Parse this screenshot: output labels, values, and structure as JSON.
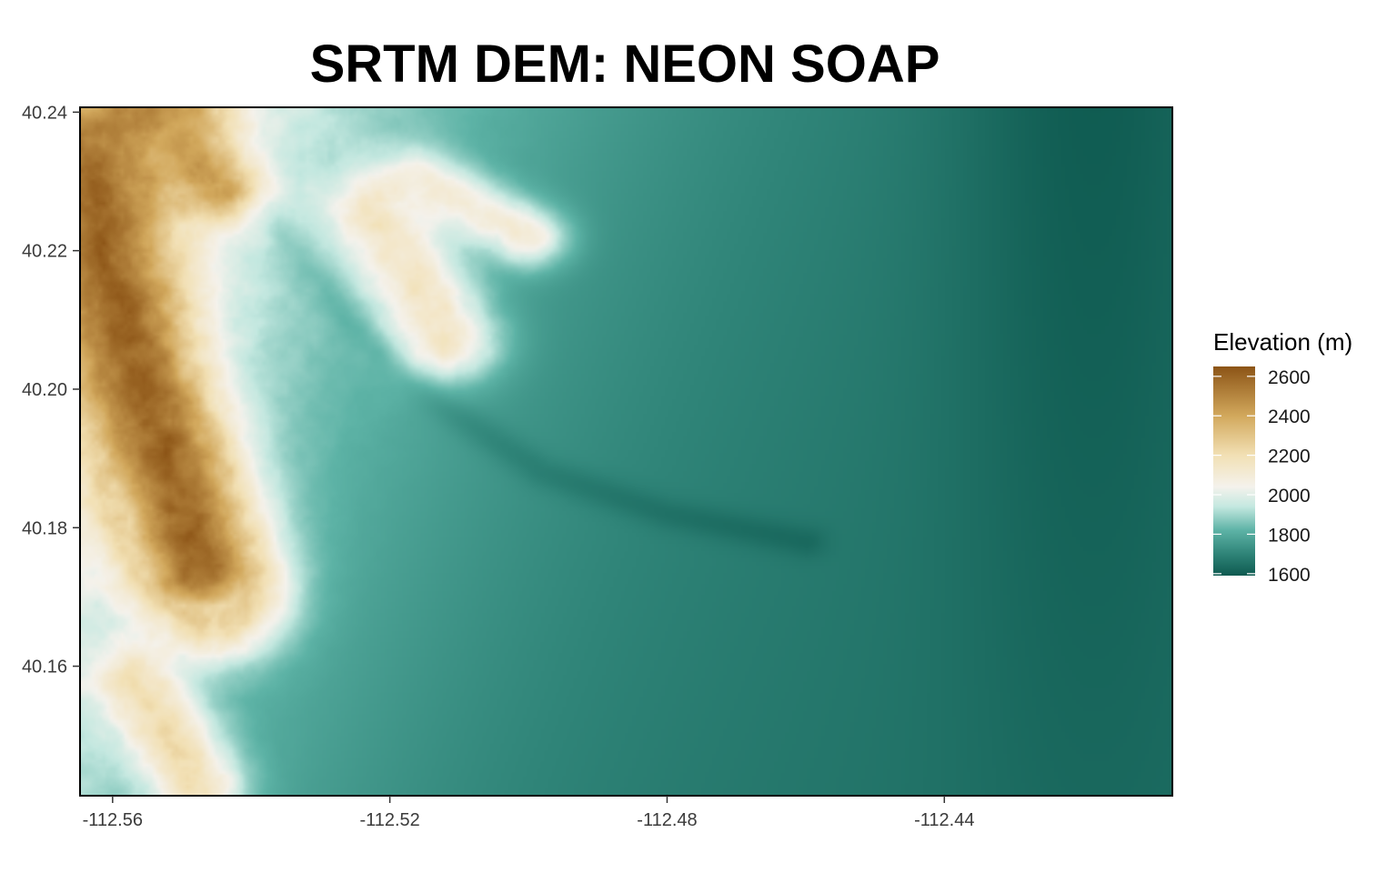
{
  "chart_data": {
    "type": "heatmap",
    "title": "SRTM DEM: NEON SOAP",
    "subtitle": "",
    "xlabel": "",
    "ylabel": "",
    "x_ticks": [
      -112.56,
      -112.52,
      -112.48,
      -112.44
    ],
    "x_tick_labels": [
      "-112.56",
      "-112.52",
      "-112.48",
      "-112.44"
    ],
    "y_ticks": [
      40.16,
      40.18,
      40.2,
      40.22,
      40.24
    ],
    "y_tick_labels": [
      "40.16",
      "40.18",
      "40.20",
      "40.22",
      "40.24"
    ],
    "xlim": [
      -112.5647,
      -112.4071
    ],
    "ylim": [
      40.1413,
      40.2407
    ],
    "legend": {
      "title": "Elevation (m)",
      "placement": "right",
      "breaks": [
        2600,
        2400,
        2200,
        2000,
        1800,
        1600
      ],
      "break_labels": [
        "2600",
        "2400",
        "2200",
        "2000",
        "1800",
        "1600"
      ],
      "limits": [
        1590,
        2650
      ]
    },
    "colorscale": {
      "palette": "BrBG",
      "stops": [
        {
          "value": 1590,
          "color": "#0e5a50"
        },
        {
          "value": 1700,
          "color": "#2f8478"
        },
        {
          "value": 1820,
          "color": "#5db3a6"
        },
        {
          "value": 1940,
          "color": "#c4e8e0"
        },
        {
          "value": 2040,
          "color": "#f4f2ec"
        },
        {
          "value": 2200,
          "color": "#f2e0b4"
        },
        {
          "value": 2400,
          "color": "#d2a85c"
        },
        {
          "value": 2650,
          "color": "#8c5416"
        }
      ]
    },
    "surface_features": [
      {
        "kind": "ridge",
        "description": "",
        "path": [
          [
            -112.5635,
            40.232
          ],
          [
            -112.56,
            40.215
          ],
          [
            -112.556,
            40.2
          ],
          [
            -112.551,
            40.187
          ],
          [
            -112.547,
            40.174
          ]
        ],
        "peak": 2600,
        "width": 0.0052
      },
      {
        "kind": "ridge",
        "path": [
          [
            -112.565,
            40.232
          ],
          [
            -112.558,
            40.238
          ],
          [
            -112.554,
            40.241
          ]
        ],
        "peak": 2500,
        "width": 0.0045
      },
      {
        "kind": "ridge",
        "path": [
          [
            -112.553,
            40.24
          ],
          [
            -112.549,
            40.234
          ],
          [
            -112.545,
            40.229
          ]
        ],
        "peak": 2430,
        "width": 0.0035
      },
      {
        "kind": "ridge",
        "path": [
          [
            -112.5642,
            40.204
          ],
          [
            -112.558,
            40.193
          ],
          [
            -112.552,
            40.18
          ],
          [
            -112.545,
            40.168
          ]
        ],
        "peak": 2280,
        "width": 0.0045
      },
      {
        "kind": "ridge",
        "path": [
          [
            -112.557,
            40.158
          ],
          [
            -112.552,
            40.15
          ],
          [
            -112.548,
            40.143
          ]
        ],
        "peak": 2200,
        "width": 0.0035
      },
      {
        "kind": "ridge",
        "path": [
          [
            -112.522,
            40.226
          ],
          [
            -112.517,
            40.217
          ],
          [
            -112.512,
            40.207
          ]
        ],
        "peak": 2150,
        "width": 0.004
      },
      {
        "kind": "ridge",
        "path": [
          [
            -112.516,
            40.23
          ],
          [
            -112.508,
            40.226
          ],
          [
            -112.5,
            40.222
          ]
        ],
        "peak": 2100,
        "width": 0.003
      },
      {
        "kind": "valley",
        "path": [
          [
            -112.538,
            40.226
          ],
          [
            -112.526,
            40.21
          ],
          [
            -112.513,
            40.198
          ],
          [
            -112.498,
            40.188
          ],
          [
            -112.48,
            40.182
          ],
          [
            -112.46,
            40.178
          ]
        ],
        "depth": 45,
        "width": 0.0016
      }
    ]
  }
}
